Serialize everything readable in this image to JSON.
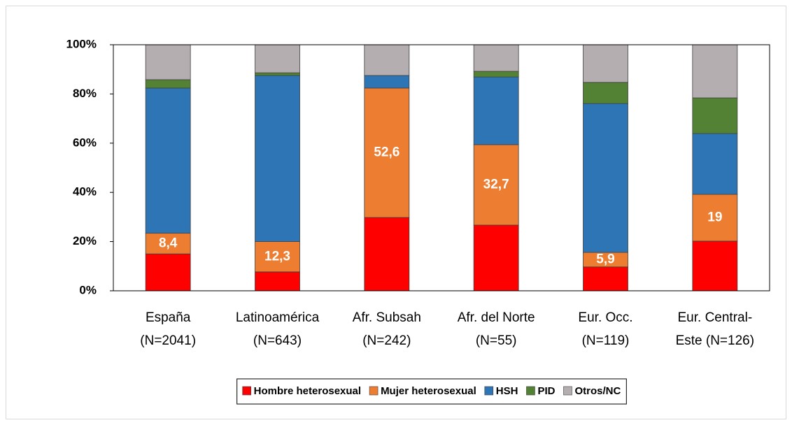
{
  "chart_data": {
    "type": "stacked_bar",
    "categories": [
      [
        "España",
        "(N=2041)"
      ],
      [
        "Latinoamérica",
        "(N=643)"
      ],
      [
        "Afr. Subsah",
        "(N=242)"
      ],
      [
        "Afr. del Norte",
        "(N=55)"
      ],
      [
        "Eur. Occ.",
        "(N=119)"
      ],
      [
        "Eur. Central-",
        "Este (N=126)"
      ]
    ],
    "series": [
      {
        "name": "Hombre heterosexual",
        "color": "#ff0000",
        "values": [
          15,
          7.7,
          29.8,
          26.7,
          9.7,
          20.2
        ]
      },
      {
        "name": "Mujer heterosexual",
        "color": "#ed7d31",
        "values": [
          8.4,
          12.3,
          52.6,
          32.7,
          5.9,
          19
        ],
        "value_labels": [
          "8,4",
          "12,3",
          "52,6",
          "32,7",
          "5,9",
          "19"
        ]
      },
      {
        "name": "HSH",
        "color": "#2e75b6",
        "values": [
          59,
          67.5,
          5.1,
          27.5,
          60.5,
          24.7
        ]
      },
      {
        "name": "PID",
        "color": "#548235",
        "values": [
          3.4,
          1.1,
          0,
          2.3,
          8.6,
          14.5
        ]
      },
      {
        "name": "Otros/NC",
        "color": "#b4aeb0",
        "values": [
          14.2,
          11.4,
          12.5,
          10.8,
          15.3,
          21.6
        ]
      }
    ],
    "ylim": [
      0,
      100
    ],
    "yticks": [
      {
        "value": 0,
        "label": "0%"
      },
      {
        "value": 20,
        "label": "20%"
      },
      {
        "value": 40,
        "label": "40%"
      },
      {
        "value": 60,
        "label": "60%"
      },
      {
        "value": 80,
        "label": "80%"
      },
      {
        "value": 100,
        "label": "100%"
      }
    ],
    "legend": "bottom"
  }
}
